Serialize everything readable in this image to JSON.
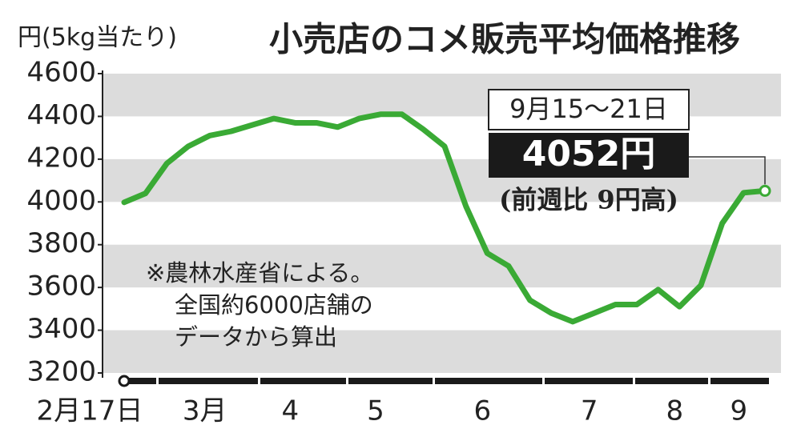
{
  "chart_data": {
    "type": "line",
    "title": "小売店のコメ販売平均価格推移",
    "y_axis_label": "円(5kg当たり)",
    "categories": [
      "2月17日",
      null,
      null,
      null,
      "3月",
      null,
      null,
      null,
      "4",
      null,
      null,
      null,
      "5",
      null,
      null,
      null,
      null,
      "6",
      null,
      null,
      null,
      null,
      "7",
      null,
      null,
      null,
      "8",
      null,
      null,
      "9",
      null
    ],
    "values": [
      3998,
      4040,
      4180,
      4260,
      4310,
      4330,
      4360,
      4390,
      4370,
      4370,
      4350,
      4390,
      4410,
      4410,
      4340,
      4260,
      3980,
      3760,
      3700,
      3540,
      3480,
      3440,
      3480,
      3520,
      3520,
      3590,
      3510,
      3610,
      3900,
      4043,
      4052
    ],
    "color": "#3aaa35",
    "ylim": [
      3200,
      4600
    ],
    "yticks": [
      3200,
      3400,
      3600,
      3800,
      4000,
      4200,
      4400,
      4600
    ],
    "grid": "bands",
    "annotations": {
      "period": "9月15〜21日",
      "latest": "4052円",
      "change": "(前週比 9円高)"
    },
    "note": [
      "※農林水産省による。",
      "全国約6000店舗の",
      "データから算出"
    ]
  }
}
